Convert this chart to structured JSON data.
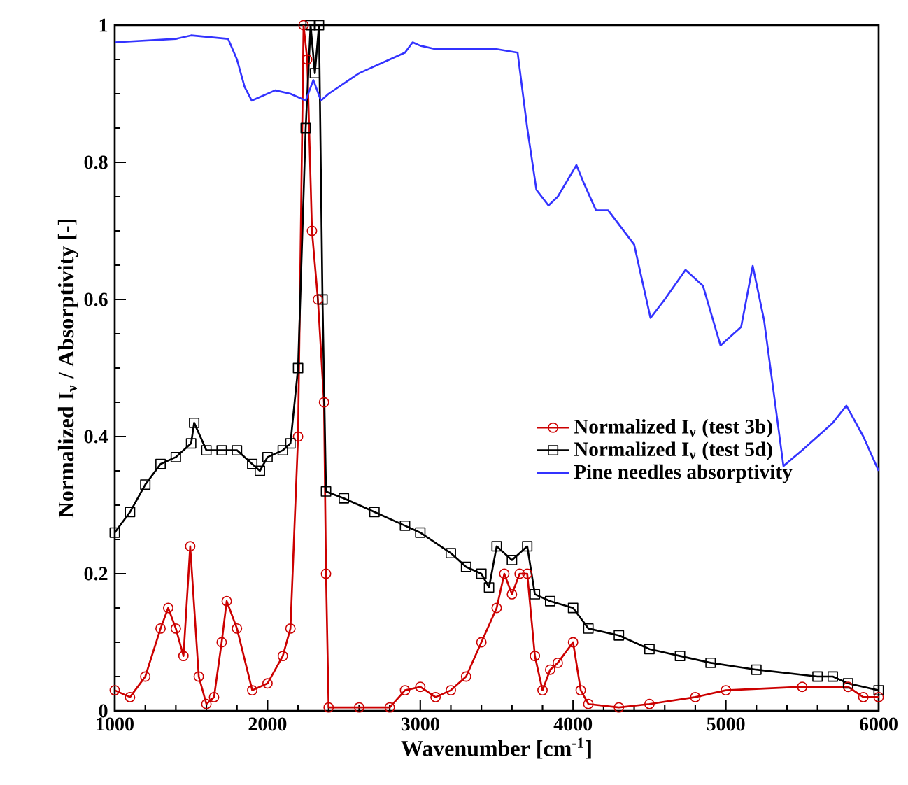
{
  "chart_data": {
    "type": "line",
    "xlabel": "Wavenumber [cm$^{-1}$]",
    "ylabel": "Normalized I$_{ν}$ / Absorptivity [-]",
    "xlim": [
      1000,
      6000
    ],
    "ylim": [
      0,
      1
    ],
    "xticks": [
      1000,
      2000,
      3000,
      4000,
      5000,
      6000
    ],
    "yticks": [
      0,
      0.2,
      0.4,
      0.6,
      0.8,
      1
    ],
    "legend": "center right",
    "grid": false,
    "series": [
      {
        "name": "Normalized I$_{ν}$ (test 3b)",
        "color": "#cc0000",
        "marker": "circle",
        "x": [
          1000,
          1100,
          1200,
          1300,
          1350,
          1400,
          1450,
          1494,
          1550,
          1600,
          1650,
          1700,
          1733,
          1800,
          1900,
          2000,
          2100,
          2150,
          2200,
          2236,
          2260,
          2291,
          2330,
          2370,
          2383,
          2400,
          2600,
          2800,
          2900,
          3000,
          3100,
          3200,
          3300,
          3400,
          3500,
          3550,
          3600,
          3650,
          3700,
          3750,
          3800,
          3850,
          3900,
          4000,
          4050,
          4100,
          4300,
          4500,
          4800,
          5000,
          5500,
          5800,
          5900,
          6000
        ],
        "values": [
          0.03,
          0.02,
          0.05,
          0.12,
          0.15,
          0.12,
          0.08,
          0.24,
          0.05,
          0.01,
          0.02,
          0.1,
          0.16,
          0.12,
          0.03,
          0.04,
          0.08,
          0.12,
          0.4,
          1.0,
          0.95,
          0.7,
          0.6,
          0.45,
          0.2,
          0.005,
          0.005,
          0.005,
          0.03,
          0.035,
          0.02,
          0.03,
          0.05,
          0.1,
          0.15,
          0.2,
          0.17,
          0.2,
          0.2,
          0.08,
          0.03,
          0.06,
          0.07,
          0.1,
          0.03,
          0.01,
          0.005,
          0.01,
          0.02,
          0.03,
          0.035,
          0.035,
          0.02,
          0.02
        ]
      },
      {
        "name": "Normalized I$_{ν}$ (test 5d)",
        "color": "#000000",
        "marker": "square",
        "x": [
          1000,
          1100,
          1200,
          1300,
          1400,
          1500,
          1520,
          1600,
          1700,
          1800,
          1900,
          1950,
          2000,
          2100,
          2150,
          2200,
          2250,
          2282,
          2310,
          2337,
          2360,
          2383,
          2500,
          2700,
          2900,
          3000,
          3200,
          3300,
          3400,
          3450,
          3500,
          3600,
          3700,
          3750,
          3850,
          4000,
          4100,
          4300,
          4500,
          4700,
          4900,
          5200,
          5600,
          5700,
          5800,
          6000
        ],
        "values": [
          0.26,
          0.29,
          0.33,
          0.36,
          0.37,
          0.39,
          0.42,
          0.38,
          0.38,
          0.38,
          0.36,
          0.35,
          0.37,
          0.38,
          0.39,
          0.5,
          0.85,
          1.0,
          0.93,
          1.0,
          0.6,
          0.32,
          0.31,
          0.29,
          0.27,
          0.26,
          0.23,
          0.21,
          0.2,
          0.18,
          0.24,
          0.22,
          0.24,
          0.17,
          0.16,
          0.15,
          0.12,
          0.11,
          0.09,
          0.08,
          0.07,
          0.06,
          0.05,
          0.05,
          0.04,
          0.03
        ]
      },
      {
        "name": "Pine needles absorptivity",
        "color": "#3333ff",
        "marker": "none",
        "x": [
          1000,
          1400,
          1500,
          1742,
          1800,
          1850,
          1897,
          2050,
          2150,
          2250,
          2300,
          2350,
          2400,
          2600,
          2800,
          2900,
          2950,
          3000,
          3100,
          3500,
          3637,
          3700,
          3760,
          3839,
          3900,
          4022,
          4070,
          4150,
          4230,
          4400,
          4507,
          4600,
          4736,
          4850,
          4965,
          5100,
          5176,
          5250,
          5377,
          5500,
          5700,
          5789,
          5900,
          6000
        ],
        "values": [
          0.975,
          0.98,
          0.985,
          0.98,
          0.95,
          0.91,
          0.89,
          0.905,
          0.9,
          0.89,
          0.92,
          0.89,
          0.9,
          0.93,
          0.95,
          0.96,
          0.975,
          0.97,
          0.965,
          0.965,
          0.96,
          0.85,
          0.76,
          0.737,
          0.75,
          0.796,
          0.77,
          0.73,
          0.73,
          0.68,
          0.573,
          0.6,
          0.643,
          0.62,
          0.533,
          0.56,
          0.649,
          0.57,
          0.357,
          0.38,
          0.42,
          0.445,
          0.4,
          0.35
        ]
      }
    ]
  }
}
